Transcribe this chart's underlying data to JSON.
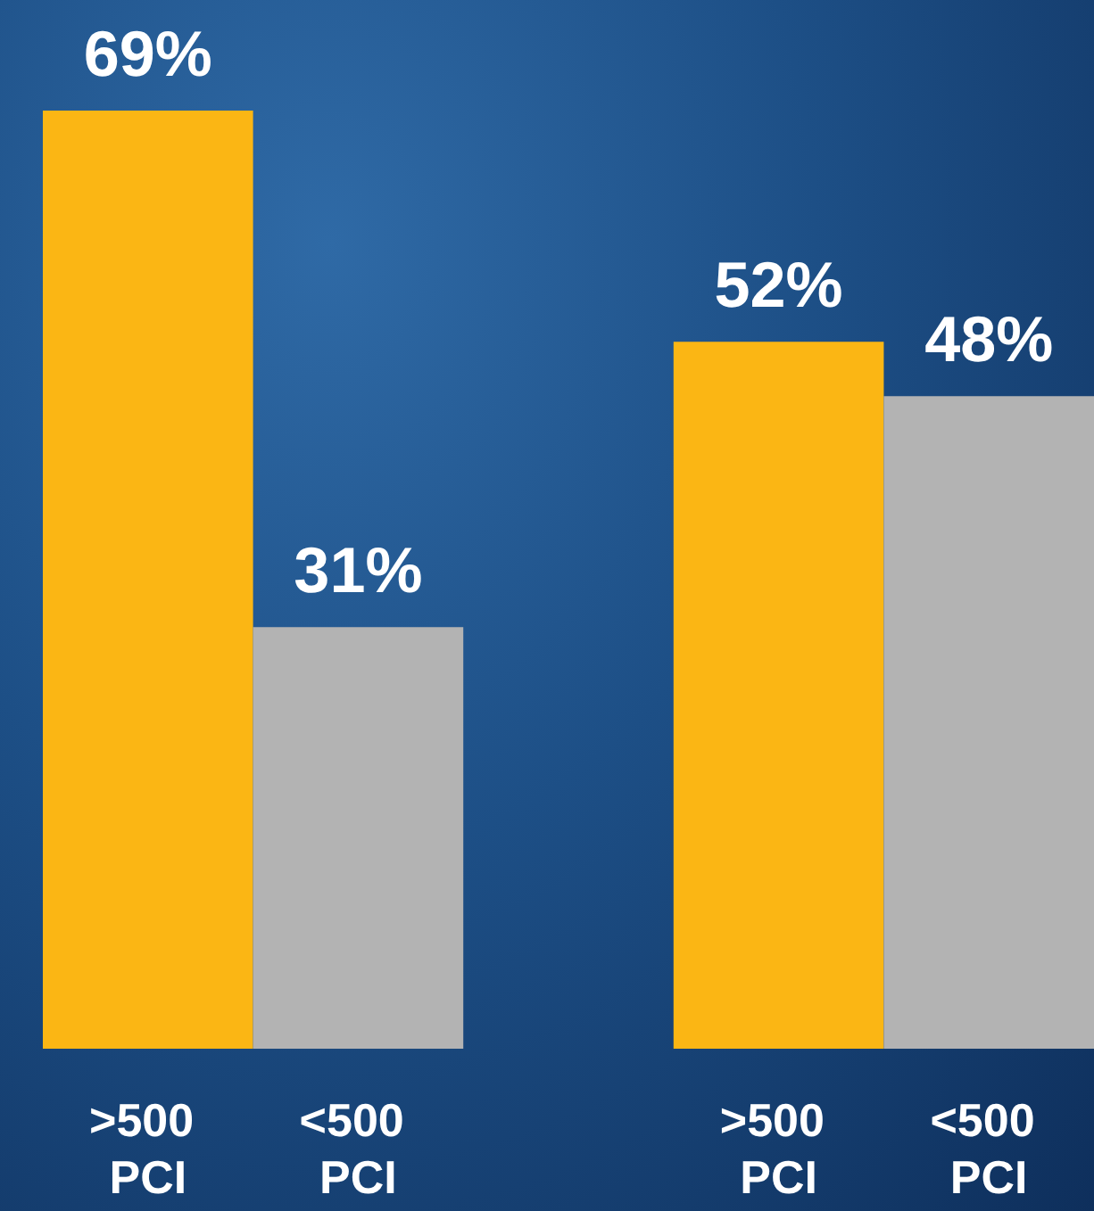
{
  "chart_data": {
    "type": "bar",
    "categories": [
      ">500 PCI",
      "<500 PCI",
      null,
      ">500 PCI",
      "<500 PCI"
    ],
    "values": [
      69,
      31,
      null,
      52,
      48
    ],
    "colors": [
      "#fbb614",
      "#b3b3b3",
      "#b3b3b3",
      "#fbb614",
      "#b3b3b3"
    ],
    "value_labels": [
      "69%",
      "31%",
      null,
      "52%",
      "48%"
    ]
  }
}
